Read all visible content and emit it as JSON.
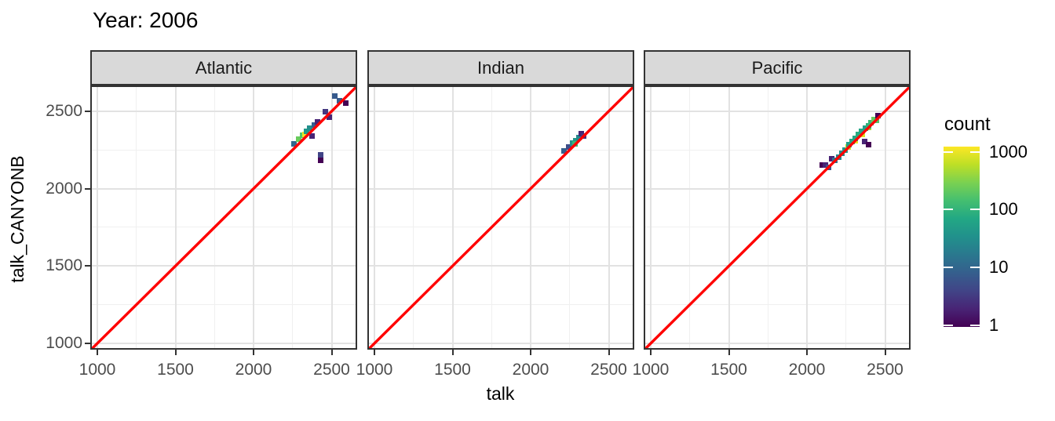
{
  "chart_data": {
    "type": "heatmap",
    "title": "Year: 2006",
    "xlabel": "talk",
    "ylabel": "talk_CANYONB",
    "x_ticks": [
      1000,
      1500,
      2000,
      2500
    ],
    "y_ticks": [
      1000,
      1500,
      2000,
      2500
    ],
    "x_minor_ticks": [
      1250,
      1750,
      2250
    ],
    "y_minor_ticks": [
      1250,
      1750,
      2250
    ],
    "xlim": [
      955,
      2667
    ],
    "ylim": [
      958,
      2667
    ],
    "bin_size": 35,
    "grid": "on",
    "identity_line": {
      "slope": 1,
      "intercept": 0,
      "color": "#ff0000"
    },
    "legend": {
      "title": "count",
      "scale": "log10",
      "ticks": [
        1000,
        100,
        10,
        1
      ],
      "position": "right",
      "palette": "viridis",
      "min_color": "#440154",
      "max_color": "#fde725"
    },
    "viridis_stops": [
      "#440154",
      "#482475",
      "#414487",
      "#355f8d",
      "#2a788e",
      "#21918c",
      "#22a884",
      "#44bf70",
      "#7ad151",
      "#bddf26",
      "#fde725"
    ],
    "facets": [
      {
        "name": "Atlantic",
        "bins": [
          [
            2260,
            2290,
            10
          ],
          [
            2290,
            2320,
            200
          ],
          [
            2315,
            2345,
            150
          ],
          [
            2330,
            2352,
            900
          ],
          [
            2340,
            2368,
            40
          ],
          [
            2360,
            2390,
            30
          ],
          [
            2375,
            2340,
            2
          ],
          [
            2390,
            2412,
            8
          ],
          [
            2412,
            2432,
            2
          ],
          [
            2460,
            2497,
            3
          ],
          [
            2487,
            2462,
            2
          ],
          [
            2520,
            2598,
            7
          ],
          [
            2550,
            2570,
            7
          ],
          [
            2590,
            2555,
            1
          ],
          [
            2430,
            2220,
            4
          ],
          [
            2430,
            2185,
            1
          ]
        ]
      },
      {
        "name": "Indian",
        "bins": [
          [
            2215,
            2245,
            8
          ],
          [
            2245,
            2270,
            5
          ],
          [
            2270,
            2292,
            30
          ],
          [
            2290,
            2312,
            40
          ],
          [
            2285,
            2290,
            100
          ],
          [
            2310,
            2332,
            25
          ],
          [
            2325,
            2355,
            2
          ],
          [
            2337,
            2340,
            3
          ]
        ]
      },
      {
        "name": "Pacific",
        "bins": [
          [
            2100,
            2155,
            1
          ],
          [
            2120,
            2150,
            2
          ],
          [
            2140,
            2135,
            6
          ],
          [
            2160,
            2195,
            2
          ],
          [
            2180,
            2182,
            15
          ],
          [
            2205,
            2202,
            25
          ],
          [
            2225,
            2227,
            30
          ],
          [
            2245,
            2247,
            40
          ],
          [
            2265,
            2270,
            600
          ],
          [
            2268,
            2285,
            50
          ],
          [
            2288,
            2305,
            60
          ],
          [
            2310,
            2312,
            800
          ],
          [
            2308,
            2325,
            60
          ],
          [
            2330,
            2348,
            70
          ],
          [
            2352,
            2352,
            700
          ],
          [
            2350,
            2368,
            60
          ],
          [
            2372,
            2390,
            50
          ],
          [
            2395,
            2395,
            400
          ],
          [
            2392,
            2408,
            80
          ],
          [
            2412,
            2428,
            100
          ],
          [
            2432,
            2448,
            200
          ],
          [
            2447,
            2440,
            150
          ],
          [
            2370,
            2305,
            2
          ],
          [
            2392,
            2285,
            1
          ],
          [
            2455,
            2470,
            1
          ]
        ]
      }
    ]
  }
}
